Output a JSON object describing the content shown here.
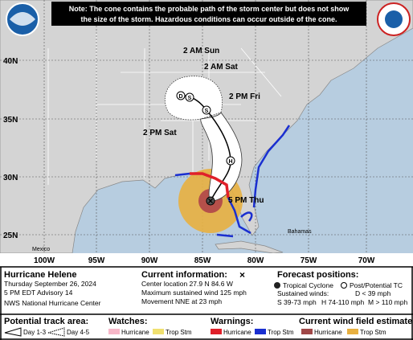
{
  "note": [
    "Note: The cone contains the probable path of the storm center but does not show",
    "the size of the storm. Hazardous conditions can occur outside of the cone."
  ],
  "map": {
    "lat_labels": [
      "40N",
      "35N",
      "30N",
      "25N"
    ],
    "lon_labels": [
      "100W",
      "95W",
      "90W",
      "85W",
      "80W",
      "75W",
      "70W"
    ],
    "place_labels": [
      "Mexico",
      "Bahamas"
    ],
    "forecast_labels": [
      "2 AM Sun",
      "2 AM Sat",
      "2 PM Fri",
      "2 PM Sat",
      "5 PM Thu"
    ],
    "point_symbols": [
      "D",
      "S",
      "S",
      "H"
    ]
  },
  "storm": {
    "name": "Hurricane Helene",
    "date": "Thursday September 26, 2024",
    "advisory": "5 PM EDT Advisory 14",
    "office": "NWS National Hurricane Center"
  },
  "current": {
    "title": "Current information:",
    "symbol": "×",
    "lines": [
      "Center location 27.9 N 84.6 W",
      "Maximum sustained wind 125 mph",
      "Movement NNE at 23 mph"
    ]
  },
  "forecast": {
    "title": "Forecast positions:",
    "tropical": "Tropical Cyclone",
    "post": "Post/Potential TC",
    "winds_title": "Sustained winds:",
    "winds": [
      "D < 39 mph",
      "S 39-73 mph",
      "H 74-110 mph",
      "M > 110 mph"
    ]
  },
  "track_area": {
    "title": "Potential track area:",
    "items": [
      "Day 1-3",
      "Day 4-5"
    ]
  },
  "watches": {
    "title": "Watches:",
    "items": [
      "Hurricane",
      "Trop Stm"
    ]
  },
  "warnings": {
    "title": "Warnings:",
    "items": [
      "Hurricane",
      "Trop Stm"
    ]
  },
  "wind_field": {
    "title": "Current wind field estimate:",
    "items": [
      "Hurricane",
      "Trop Stm"
    ]
  }
}
